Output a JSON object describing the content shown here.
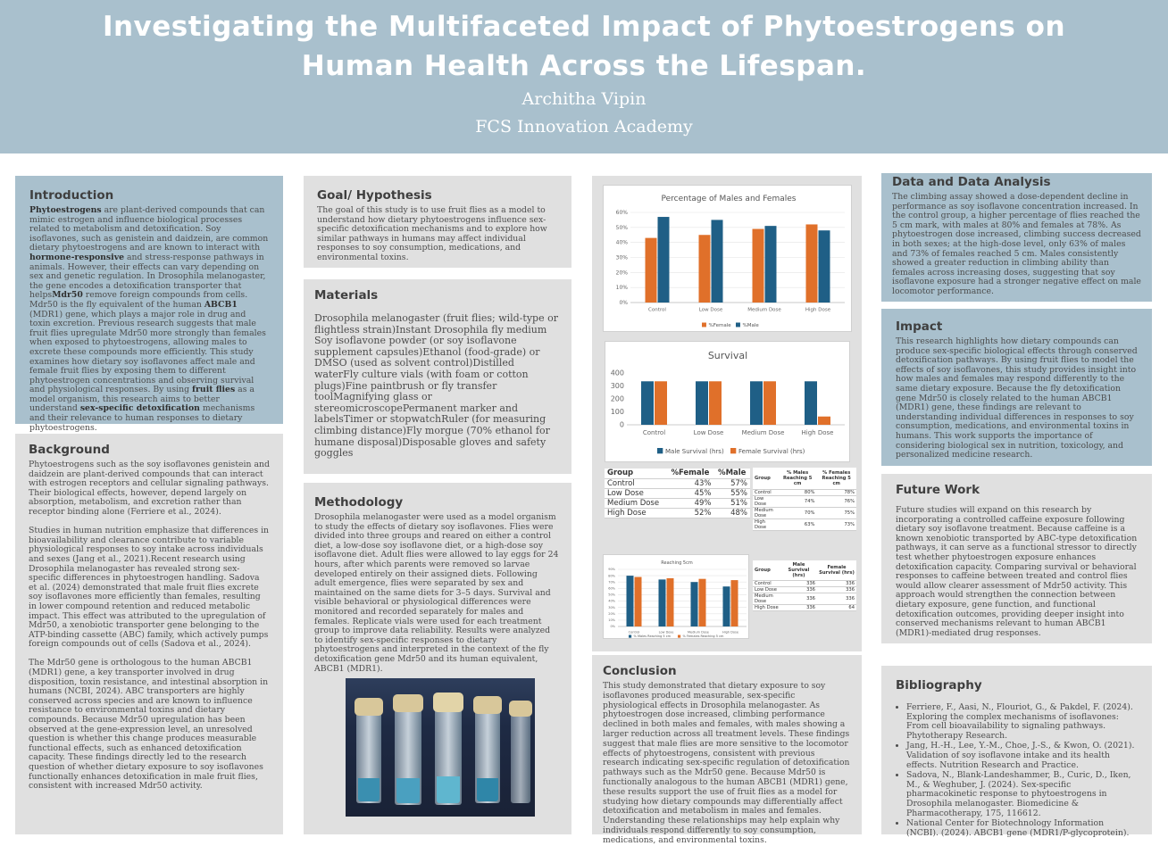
{
  "header": {
    "title_line1": "Investigating the Multifaceted Impact of Phytoestrogens on",
    "title_line2": "Human Health Across the Lifespan.",
    "author": "Architha Vipin",
    "school": "FCS Innovation Academy"
  },
  "introduction": {
    "heading": "Introduction",
    "b1": "Phytoestrogens",
    "t1": " are plant-derived compounds that can mimic estrogen and influence biological processes related to metabolism and detoxification. Soy isoflavones, such as genistein and daidzein, are common dietary phytoestrogens and are known to interact with ",
    "b2": "hormone-responsive",
    "t2": " and stress-response pathways in animals. However, their effects can vary depending on sex and genetic regulation. In Drosophila melanogaster, the gene encodes a detoxification transporter that helps",
    "b3": "Mdr50",
    "t3": " remove foreign compounds from cells. Mdr50 is the fly equivalent of the human ",
    "b4": "ABCB1",
    "t4": " (MDR1) gene, which plays a major role in drug and toxin excretion. Previous research suggests that male fruit flies upregulate Mdr50 more strongly than females when exposed to phytoestrogens, allowing males to excrete these compounds more efficiently. This study examines how dietary soy isoflavones affect male and female fruit flies by exposing them to different phytoestrogen concentrations and observing survival and physiological responses. By using ",
    "b5": "fruit flies",
    "t5": " as a model organism, this research aims to better understand ",
    "b6": "sex-specific detoxification",
    "t6": " mechanisms and their relevance to human responses to dietary phytoestrogens."
  },
  "background": {
    "heading": "Background",
    "text": "Phytoestrogens such as the soy isoflavones genistein and daidzein are plant-derived compounds that can interact with estrogen receptors and cellular signaling pathways. Their biological effects, however, depend largely on absorption, metabolism, and excretion rather than receptor binding alone (Ferriere et al., 2024).\n\nStudies in human nutrition emphasize that differences in bioavailability and clearance contribute to variable physiological responses to soy intake across individuals and sexes (Jang et al., 2021).Recent research using Drosophila melanogaster has revealed strong sex-specific differences in phytoestrogen handling. Sadova et al. (2024) demonstrated that male fruit flies excrete soy isoflavones more efficiently than females, resulting in lower compound retention and reduced metabolic impact. This effect was attributed to the upregulation of Mdr50, a xenobiotic transporter gene belonging to the ATP-binding cassette (ABC) family, which actively pumps foreign compounds out of cells (Sadova et al., 2024).\n\nThe Mdr50 gene is orthologous to the human ABCB1 (MDR1) gene, a key transporter involved in drug disposition, toxin resistance, and intestinal absorption in humans (NCBI, 2024). ABC transporters are highly conserved across species and are known to influence resistance to environmental toxins and dietary compounds. Because Mdr50 upregulation has been observed at the gene-expression level, an unresolved question is whether this change produces measurable functional effects, such as enhanced detoxification capacity. These findings directly led to the research question of whether dietary exposure to soy isoflavones functionally enhances detoxification in male fruit flies, consistent with increased Mdr50 activity."
  },
  "goal": {
    "heading": "Goal/ Hypothesis",
    "text": "The goal of this study is to use fruit flies as a model to understand how dietary phytoestrogens influence sex-specific detoxification mechanisms and to explore how similar pathways in humans may affect individual responses to soy consumption, medications, and environmental toxins."
  },
  "materials": {
    "heading": "Materials",
    "text": "Drosophila melanogaster (fruit flies; wild-type or flightless strain)Instant Drosophila fly medium Soy isoflavone powder (or soy isoflavone supplement capsules)Ethanol (food-grade) or DMSO (used as solvent control)Distilled waterFly culture vials (with foam or cotton plugs)Fine paintbrush or fly transfer toolMagnifying glass or stereomicroscopePermanent marker and labelsTimer or stopwatchRuler (for measuring climbing distance)Fly morgue (70% ethanol for humane disposal)Disposable gloves and safety goggles"
  },
  "methodology": {
    "heading": "Methodology",
    "text": "Drosophila melanogaster were used as a model organism to study the effects of dietary soy isoflavones. Flies were divided into three groups and reared on either a control diet, a low-dose soy isoflavone diet, or a high-dose soy isoflavone diet. Adult flies were allowed to lay eggs for 24 hours, after which parents were removed so larvae developed entirely on their assigned diets. Following adult emergence, flies were separated by sex and maintained on the same diets for 3–5 days. Survival and visible behavioral or physiological differences were monitored and recorded separately for males and females. Replicate vials were used for each treatment group to improve data reliability. Results were analyzed to identify sex-specific responses to dietary phytoestrogens and interpreted in the context of the fly detoxification gene Mdr50 and its human equivalent, ABCB1 (MDR1)."
  },
  "conclusion": {
    "heading": "Conclusion",
    "text": "This study demonstrated that dietary exposure to soy isoflavones produced measurable, sex-specific physiological effects in Drosophila melanogaster. As phytoestrogen dose increased, climbing performance declined in both males and females, with males showing a larger reduction across all treatment levels. These findings suggest that male flies are more sensitive to the locomotor effects of phytoestrogens, consistent with previous research indicating sex-specific regulation of detoxification pathways such as the Mdr50 gene. Because Mdr50 is functionally analogous to the human ABCB1 (MDR1) gene, these results support the use of fruit flies as a model for studying how dietary compounds may differentially affect detoxification and metabolism in males and females. Understanding these relationships may help explain why individuals respond differently to soy consumption, medications, and environmental toxins."
  },
  "data_analysis": {
    "heading": "Data and Data Analysis",
    "text": "The climbing assay showed a dose-dependent decline in performance as soy isoflavone concentration increased. In the control group, a higher percentage of flies reached the 5 cm mark, with males at 80% and females at 78%. As phytoestrogen dose increased, climbing success decreased in both sexes; at the high-dose level, only 63% of males and 73% of females reached 5 cm. Males consistently showed a greater reduction in climbing ability than females across increasing doses, suggesting that soy isoflavone exposure had a stronger negative effect on male locomotor performance."
  },
  "impact": {
    "heading": "Impact",
    "text": "This research highlights how dietary compounds can produce sex-specific biological effects through conserved detoxification pathways. By using fruit flies to model the effects of soy isoflavones, this study provides insight into how males and females may respond differently to the same dietary exposure. Because the fly detoxification gene Mdr50 is closely related to the human ABCB1 (MDR1) gene, these findings are relevant to understanding individual differences in responses to soy consumption, medications, and environmental toxins in humans. This work supports the importance of considering biological sex in nutrition, toxicology, and personalized medicine research."
  },
  "future": {
    "heading": "Future Work",
    "text": "Future studies will expand on this research by incorporating a controlled caffeine exposure following dietary soy isoflavone treatment. Because caffeine is a known xenobiotic transported by ABC-type detoxification pathways, it can serve as a functional stressor to directly test whether phytoestrogen exposure enhances detoxification capacity. Comparing survival or behavioral responses to caffeine between treated and control flies would allow clearer assessment of Mdr50 activity. This approach would strengthen the connection between dietary exposure, gene function, and functional detoxification outcomes, providing deeper insight into conserved mechanisms relevant to human ABCB1 (MDR1)-mediated drug responses."
  },
  "bibliography": {
    "heading": "Bibliography",
    "items": [
      "Ferriere, F., Aasi, N., Flouriot, G., & Pakdel, F. (2024). Exploring the complex mechanisms of isoflavones: From cell bioavailability to signaling pathways. Phytotherapy Research.",
      "Jang, H.-H., Lee, Y.-M., Choe, J.-S., & Kwon, O. (2021). Validation of soy isoflavone intake and its health effects. Nutrition Research and Practice.",
      "Sadova, N., Blank-Landeshammer, B., Curic, D., Iken, M., & Weghuber, J. (2024). Sex-specific pharmacokinetic response to phytoestrogens in Drosophila melanogaster. Biomedicine & Pharmacotherapy, 175, 116612.",
      "National Center for Biotechnology Information (NCBI). (2024). ABCB1 gene (MDR1/P-glycoprotein)."
    ]
  },
  "colors": {
    "male": "#1f5f86",
    "female": "#e0702a",
    "header_bg": "#a9c0cd",
    "panel_grey": "#e0e0e0"
  },
  "chart_data": [
    {
      "type": "bar",
      "title": "Percentage of Males and Females",
      "categories": [
        "Control",
        "Low Dose",
        "Medium Dose",
        "High Dose"
      ],
      "series": [
        {
          "name": "%Female",
          "values": [
            43,
            45,
            49,
            52
          ]
        },
        {
          "name": "%Male",
          "values": [
            57,
            55,
            51,
            48
          ]
        }
      ],
      "y_ticks": [
        "0%",
        "10%",
        "20%",
        "30%",
        "40%",
        "50%",
        "60%"
      ],
      "ylim": [
        0,
        60
      ],
      "legend": "bottom"
    },
    {
      "type": "bar",
      "title": "Survival",
      "categories": [
        "Control",
        "Low Dose",
        "Medium Dose",
        "High Dose"
      ],
      "series": [
        {
          "name": "Male Survival (hrs)",
          "values": [
            336,
            336,
            336,
            336
          ]
        },
        {
          "name": "Female Survival (hrs)",
          "values": [
            336,
            336,
            336,
            64
          ]
        }
      ],
      "y_ticks": [
        "0",
        "100",
        "200",
        "300",
        "400"
      ],
      "ylim": [
        0,
        400
      ],
      "legend": "bottom"
    },
    {
      "type": "bar",
      "title": "Reaching 5cm",
      "categories": [
        "Control",
        "Low Dose",
        "Medium Dose",
        "High Dose"
      ],
      "series": [
        {
          "name": "% Males Reaching 5 cm",
          "values": [
            80,
            74,
            70,
            63
          ]
        },
        {
          "name": "% Females Reaching 5 cm",
          "values": [
            78,
            76,
            75,
            73
          ]
        }
      ],
      "y_ticks": [
        "0%",
        "10%",
        "20%",
        "30%",
        "40%",
        "50%",
        "60%",
        "70%",
        "80%",
        "90%"
      ],
      "ylim": [
        0,
        90
      ],
      "legend": "bottom"
    },
    {
      "type": "table",
      "columns": [
        "Group",
        "%Female",
        "%Male"
      ],
      "rows": [
        [
          "Control",
          "43%",
          "57%"
        ],
        [
          "Low Dose",
          "45%",
          "55%"
        ],
        [
          "Medium Dose",
          "49%",
          "51%"
        ],
        [
          "High Dose",
          "52%",
          "48%"
        ]
      ]
    },
    {
      "type": "table",
      "columns": [
        "Group",
        "% Males Reaching 5 cm",
        "% Females Reaching 5 cm"
      ],
      "rows": [
        [
          "Control",
          "80%",
          "78%"
        ],
        [
          "Low Dose",
          "74%",
          "76%"
        ],
        [
          "Medium Dose",
          "70%",
          "75%"
        ],
        [
          "High Dose",
          "63%",
          "73%"
        ]
      ]
    },
    {
      "type": "table",
      "columns": [
        "Group",
        "Male Survival (hrs)",
        "Female Survival (hrs)"
      ],
      "rows": [
        [
          "Control",
          "336",
          "336"
        ],
        [
          "Low Dose",
          "336",
          "336"
        ],
        [
          "Medium Dose",
          "336",
          "336"
        ],
        [
          "High Dose",
          "336",
          "64"
        ]
      ]
    }
  ]
}
